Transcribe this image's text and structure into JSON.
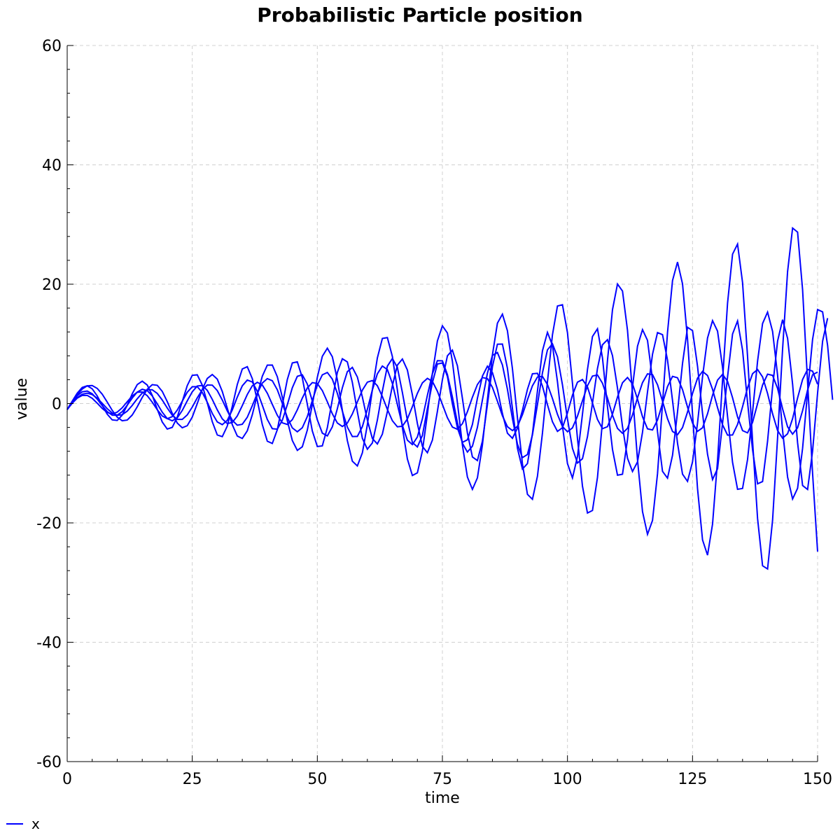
{
  "chart_data": {
    "type": "line",
    "title": "Probabilistic Particle position",
    "xlabel": "time",
    "ylabel": "value",
    "xlim": [
      0,
      150
    ],
    "ylim": [
      -60,
      60
    ],
    "x_ticks": [
      0,
      25,
      50,
      75,
      100,
      125,
      150
    ],
    "y_ticks": [
      -60,
      -40,
      -20,
      0,
      20,
      40,
      60
    ],
    "grid": true,
    "legend": {
      "placement": "bottom-left",
      "entries": [
        "x"
      ]
    },
    "series_color": "#0000ff",
    "x_step": 1,
    "series": [
      {
        "name": "x",
        "values": [
          -1.0,
          0.32,
          1.5,
          2.43,
          2.97,
          3.02,
          2.54,
          1.57,
          0.25,
          -1.14,
          -2.28,
          -2.88,
          -2.77,
          -1.92,
          -0.54,
          1.03,
          2.39,
          3.16,
          3.06,
          2.04,
          0.33,
          -1.64,
          -3.27,
          -4.06,
          -3.71,
          -2.26,
          0.0,
          2.38,
          4.2,
          4.86,
          4.09,
          2.03,
          -0.78,
          -3.54,
          -5.44,
          -5.85,
          -4.57,
          -1.87,
          1.5,
          4.58,
          6.44,
          6.45,
          4.5,
          1.06,
          -2.87,
          -6.19,
          -7.85,
          -7.24,
          -4.45,
          -0.17,
          4.39,
          7.92,
          9.27,
          7.84,
          4.0,
          -1.14,
          -6.21,
          -9.66,
          -10.45,
          -8.27,
          -3.55,
          2.3,
          7.64,
          10.91,
          11.05,
          7.89,
          2.29,
          -4.02,
          -9.29,
          -12.06,
          -11.61,
          -7.96,
          -1.82,
          5.01,
          10.49,
          13.02,
          11.82,
          7.06,
          0.14,
          -6.97,
          -12.32,
          -14.38,
          -12.45,
          -6.95,
          0.68,
          8.16,
          13.47,
          14.98,
          12.19,
          5.84,
          -2.37,
          -10.12,
          -15.21,
          -16.04,
          -12.18,
          -4.95,
          3.66,
          11.53,
          16.34,
          16.55,
          11.89,
          3.38,
          -5.86,
          -13.85,
          -18.35,
          -17.92,
          -12.37,
          -2.93,
          7.23,
          15.73,
          20.03,
          18.85,
          12.27,
          1.75,
          -9.42,
          -18.1,
          -21.91,
          -19.59,
          -11.76,
          -0.04,
          11.93,
          20.61,
          23.71,
          20.06,
          10.78,
          -1.77,
          -14.27,
          -22.85,
          -25.41,
          -20.2,
          -9.51,
          3.9,
          16.82,
          25.03,
          26.73,
          20.26,
          7.89,
          -6.26,
          -19.26,
          -27.18,
          -27.72,
          -19.56,
          -5.74,
          9.09,
          22.11,
          29.41,
          28.72,
          19.07,
          3.55,
          -11.73,
          -24.82
        ]
      },
      {
        "name": "x",
        "values": [
          -1.0,
          0.09,
          0.98,
          1.56,
          1.74,
          1.5,
          0.89,
          0.04,
          -0.86,
          -1.59,
          -1.96,
          -1.87,
          -1.27,
          -0.31,
          0.8,
          1.76,
          2.32,
          2.31,
          1.7,
          0.59,
          -0.74,
          -1.94,
          -2.65,
          -2.65,
          -1.9,
          -0.59,
          0.95,
          2.31,
          3.11,
          3.08,
          2.17,
          0.59,
          -1.22,
          -2.8,
          -3.63,
          -3.47,
          -2.29,
          -0.36,
          1.73,
          3.43,
          4.18,
          3.82,
          2.31,
          0.03,
          -2.31,
          -4.08,
          -4.73,
          -4.05,
          -2.17,
          0.51,
          3.08,
          4.81,
          5.21,
          4.09,
          1.71,
          -1.26,
          -3.95,
          -5.53,
          -5.51,
          -3.88,
          -0.97,
          2.28,
          4.98,
          6.29,
          5.69,
          3.37,
          -0.16,
          -3.66,
          -6.13,
          -6.88,
          -5.6,
          -2.56,
          1.39,
          4.99,
          7.18,
          7.16,
          4.86,
          1.07,
          -3.21,
          -6.65,
          -8.13,
          -7.15,
          -3.98,
          0.61,
          5.09,
          8.06,
          8.55,
          6.46,
          2.38,
          -2.52,
          -6.8,
          -9.06,
          -8.54,
          -5.24,
          -0.16,
          5.15,
          9.0,
          10.01,
          7.84,
          3.13,
          -2.58,
          -7.5,
          -9.96,
          -9.24,
          -5.54,
          0.06,
          5.89,
          9.85,
          10.7,
          8.02,
          2.59,
          -3.85,
          -9.16,
          -11.39,
          -9.78,
          -4.81,
          1.95,
          8.26,
          11.89,
          11.55,
          7.29,
          0.52,
          -6.65,
          -11.83,
          -13.04,
          -9.76,
          -3.26,
          4.49,
          10.99,
          13.89,
          12.13,
          6.07,
          -2.17,
          -9.85,
          -14.37,
          -14.23,
          -9.37,
          -1.41,
          7.1,
          13.41,
          15.32,
          12.09,
          4.76,
          -4.49,
          -12.32,
          -15.99,
          -14.2,
          -7.5,
          1.96,
          10.76,
          15.75,
          15.36,
          9.73,
          0.62
        ]
      },
      {
        "name": "x",
        "values": [
          -1.0,
          0.06,
          0.91,
          1.37,
          1.37,
          0.88,
          0.06,
          -0.82,
          -1.49,
          -1.74,
          -1.44,
          -0.7,
          0.31,
          1.28,
          1.89,
          1.93,
          1.32,
          0.23,
          -1.03,
          -2.08,
          -2.54,
          -2.19,
          -1.1,
          0.4,
          1.89,
          2.82,
          2.83,
          1.86,
          0.22,
          -1.65,
          -3.08,
          -3.54,
          -2.82,
          -1.07,
          1.08,
          2.97,
          3.94,
          3.62,
          2.05,
          -0.28,
          -2.66,
          -4.21,
          -4.29,
          -2.8,
          -0.2,
          2.64,
          4.56,
          4.82,
          3.26,
          0.41,
          -2.73,
          -4.96,
          -5.43,
          -3.9,
          -0.87,
          2.64,
          5.34,
          6.06,
          4.45,
          1.11,
          -2.77,
          -5.85,
          -6.77,
          -5.12,
          -1.34,
          2.98,
          6.44,
          7.46,
          5.62,
          1.44,
          -3.35,
          -7.17,
          -8.24,
          -6.13,
          -1.31,
          4.0,
          7.99,
          8.94,
          6.34,
          0.87,
          -4.93,
          -8.95,
          -9.55,
          -6.31,
          -0.17,
          6.18,
          9.95,
          9.97,
          5.9,
          -0.84,
          -7.48,
          -10.97,
          -10.07,
          -5.07,
          2.11,
          8.83,
          11.93,
          9.75,
          3.66,
          -3.76,
          -10.06,
          -12.47,
          -8.89,
          -1.77,
          5.71,
          11.23,
          12.53,
          7.64,
          -0.54,
          -7.69,
          -12.0,
          -11.84,
          -6.03,
          2.77,
          9.61,
          12.39,
          10.59,
          3.98,
          -4.73,
          -11.36,
          -12.5,
          -8.68,
          -1.41,
          6.73,
          12.78,
          12.22,
          6.25,
          -1.67,
          -8.5,
          -12.73,
          -10.92,
          -3.31,
          4.47,
          11.65,
          13.84,
          8.95,
          0.18,
          -7.74,
          -13.45,
          -13.07,
          -6.31,
          2.73,
          10.46,
          14.05,
          10.93,
          3.26,
          -6.57,
          -13.73,
          -14.4,
          -7.95,
          1.78,
          10.45,
          14.31
        ]
      },
      {
        "name": "x",
        "values": [
          -1.0,
          0.25,
          1.31,
          1.97,
          2.09,
          1.64,
          0.74,
          -0.35,
          -1.35,
          -1.95,
          -1.96,
          -1.35,
          -0.28,
          0.92,
          1.92,
          2.39,
          2.17,
          1.28,
          -0.04,
          -1.45,
          -2.52,
          -2.89,
          -2.4,
          -1.16,
          0.45,
          1.97,
          2.94,
          3.03,
          2.21,
          0.7,
          -1.06,
          -2.56,
          -3.35,
          -3.18,
          -2.08,
          -0.34,
          1.52,
          2.97,
          3.56,
          3.11,
          1.74,
          -0.14,
          -1.97,
          -3.23,
          -3.5,
          -2.7,
          -1.05,
          0.92,
          2.62,
          3.51,
          3.35,
          2.17,
          0.29,
          -1.71,
          -3.26,
          -3.84,
          -3.27,
          -1.74,
          0.28,
          2.25,
          3.58,
          3.85,
          2.98,
          1.17,
          -0.98,
          -2.87,
          -3.9,
          -3.8,
          -2.58,
          -0.51,
          1.71,
          3.46,
          4.22,
          3.71,
          2.06,
          -0.15,
          -2.37,
          -3.94,
          -4.31,
          -3.37,
          -1.36,
          1.06,
          3.19,
          4.36,
          4.18,
          2.71,
          0.39,
          -2.05,
          -3.88,
          -4.53,
          -3.81,
          -1.86,
          0.63,
          2.98,
          4.44,
          4.54,
          3.19,
          0.84,
          -1.81,
          -3.87,
          -4.72,
          -4.07,
          -2.11,
          0.48,
          2.98,
          4.61,
          4.78,
          3.4,
          0.91,
          -1.96,
          -4.16,
          -4.98,
          -4.15,
          -1.91,
          0.96,
          3.51,
          4.97,
          4.85,
          3.16,
          0.42,
          -2.54,
          -4.67,
          -5.22,
          -4.03,
          -1.42,
          1.69,
          4.26,
          5.39,
          4.7,
          2.39,
          -0.68,
          -3.55,
          -5.29,
          -5.27,
          -3.49,
          -0.53,
          2.65,
          5.0,
          5.71,
          4.47,
          1.69,
          -1.71,
          -4.52,
          -5.8,
          -5.06,
          -2.53,
          0.94,
          4.03,
          5.73,
          5.42,
          3.23
        ]
      },
      {
        "name": "x",
        "values": [
          -1.0,
          0.4,
          1.74,
          2.7,
          2.98,
          2.47,
          1.28,
          -0.29,
          -1.78,
          -2.74,
          -2.83,
          -1.93,
          -0.28,
          1.64,
          3.17,
          3.75,
          3.1,
          1.37,
          -0.95,
          -3.09,
          -4.27,
          -3.99,
          -2.27,
          0.35,
          3.01,
          4.73,
          4.81,
          3.09,
          0.13,
          -3.05,
          -5.26,
          -5.55,
          -3.77,
          -0.47,
          3.2,
          5.79,
          6.18,
          4.18,
          0.5,
          -3.52,
          -6.31,
          -6.69,
          -4.38,
          -0.27,
          4.02,
          6.8,
          6.99,
          4.32,
          -0.14,
          -4.6,
          -7.2,
          -7.09,
          -4.05,
          0.7,
          5.22,
          7.51,
          6.98,
          3.54,
          -1.37,
          -5.82,
          -7.65,
          -6.6,
          -2.77,
          2.06,
          6.27,
          7.55,
          6.06,
          1.86,
          -2.8,
          -6.52,
          -7.27,
          -5.36,
          -0.84,
          3.49,
          6.63,
          6.8,
          4.54,
          -0.05,
          -4.08,
          -6.5,
          -6.08,
          -3.5,
          0.89,
          4.6,
          6.26,
          5.19,
          2.36,
          -1.69,
          -4.97,
          -5.82,
          -4.14,
          -1.13,
          2.38,
          4.99,
          5.07,
          2.93,
          -0.19,
          -3.05,
          -4.67,
          -4.05,
          -1.57,
          1.42,
          3.58,
          4.02,
          2.79,
          0.08,
          -2.67,
          -4.21,
          -3.87,
          -1.77,
          1.09,
          3.48,
          4.36,
          3.3,
          0.75,
          -2.21,
          -4.24,
          -4.42,
          -2.76,
          0.04,
          2.85,
          4.55,
          4.32,
          2.33,
          -0.6,
          -3.27,
          -4.66,
          -4.06,
          -1.71,
          1.39,
          3.93,
          4.89,
          3.73,
          0.97,
          -2.24,
          -4.53,
          -4.91,
          -3.15,
          -0.02,
          3.1,
          4.92,
          4.72,
          2.53,
          -0.87,
          -3.9,
          -5.12,
          -4.06,
          -1.19,
          2.27,
          4.82,
          5.28
        ]
      }
    ]
  }
}
